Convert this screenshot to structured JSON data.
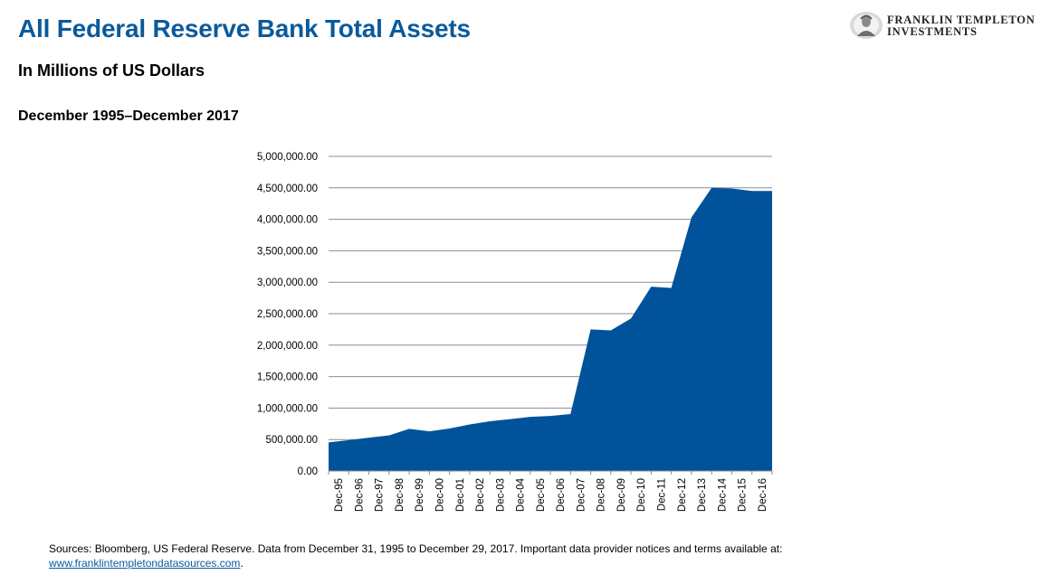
{
  "header": {
    "title": "All Federal Reserve Bank Total Assets",
    "subtitle": "In Millions of US Dollars",
    "date_range": "December 1995–December 2017"
  },
  "logo": {
    "line1": "FRANKLIN TEMPLETON",
    "line2": "INVESTMENTS"
  },
  "footer": {
    "sources": "Sources: Bloomberg, US Federal Reserve. Data from December 31, 1995 to December 29, 2017. Important data provider notices and terms available at:",
    "link": "www.franklintempletondatasources.com",
    "suffix": "."
  },
  "colors": {
    "title": "#0a5a9c",
    "area": "#00529b",
    "grid": "#8c8c8c"
  },
  "chart_data": {
    "type": "area",
    "ylim": [
      0,
      5000000
    ],
    "yticks": [
      "5,000,000.00",
      "4,500,000.00",
      "4,000,000.00",
      "3,500,000.00",
      "3,000,000.00",
      "2,500,000.00",
      "2,000,000.00",
      "1,500,000.00",
      "1,000,000.00",
      "500,000.00",
      "0.00"
    ],
    "ytick_values": [
      5000000,
      4500000,
      4000000,
      3500000,
      3000000,
      2500000,
      2000000,
      1500000,
      1000000,
      500000,
      0
    ],
    "x_labels": [
      "Dec-95",
      "Dec-96",
      "Dec-97",
      "Dec-98",
      "Dec-99",
      "Dec-00",
      "Dec-01",
      "Dec-02",
      "Dec-03",
      "Dec-04",
      "Dec-05",
      "Dec-06",
      "Dec-07",
      "Dec-08",
      "Dec-09",
      "Dec-10",
      "Dec-11",
      "Dec-12",
      "Dec-13",
      "Dec-14",
      "Dec-15",
      "Dec-16"
    ],
    "x": [
      "Dec-95",
      "Dec-96",
      "Dec-97",
      "Dec-98",
      "Dec-99",
      "Dec-00",
      "Dec-01",
      "Dec-02",
      "Dec-03",
      "Dec-04",
      "Dec-05",
      "Dec-06",
      "Dec-07",
      "Dec-08",
      "Dec-09",
      "Dec-10",
      "Dec-11",
      "Dec-12",
      "Dec-13",
      "Dec-14",
      "Dec-15",
      "Dec-16",
      "Dec-17"
    ],
    "values": [
      455000,
      490000,
      530000,
      565000,
      670000,
      630000,
      675000,
      740000,
      790000,
      825000,
      860000,
      875000,
      905000,
      2250000,
      2235000,
      2425000,
      2930000,
      2910000,
      4030000,
      4500000,
      4490000,
      4450000,
      4450000
    ],
    "grid": true,
    "legend": "none"
  }
}
